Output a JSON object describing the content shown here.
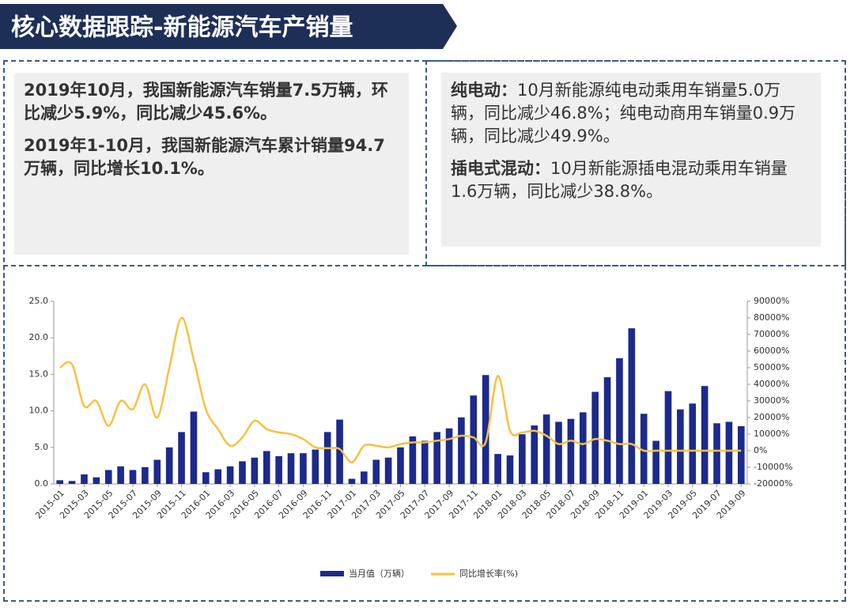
{
  "header": {
    "title": "核心数据跟踪-新能源汽车产销量"
  },
  "left_box": {
    "paragraphs": [
      "2019年10月，我国新能源汽车销量7.5万辆，环比减少5.9%，同比减少45.6%。",
      "2019年1-10月，我国新能源汽车累计销量94.7万辆，同比增长10.1%。"
    ]
  },
  "right_box": {
    "items": [
      {
        "label": "纯电动：",
        "text": "10月新能源纯电动乘用车销量5.0万辆，同比减少46.8%；纯电动商用车销量0.9万辆，同比减少49.9%。"
      },
      {
        "label": "插电式混动：",
        "text": "10月新能源插电混动乘用车销量1.6万辆，同比减少38.8%。"
      }
    ]
  },
  "chart_data": {
    "type": "combo",
    "categories": [
      "2015-01",
      null,
      "2015-03",
      null,
      "2015-05",
      null,
      "2015-07",
      null,
      "2015-09",
      null,
      "2015-11",
      null,
      "2016-01",
      null,
      "2016-03",
      null,
      "2016-05",
      null,
      "2016-07",
      null,
      "2016-09",
      null,
      "2016-11",
      null,
      "2017-01",
      null,
      "2017-03",
      null,
      "2017-05",
      null,
      "2017-07",
      null,
      "2017-09",
      null,
      "2017-11",
      null,
      "2018-01",
      null,
      "2018-03",
      null,
      "2018-05",
      null,
      "2018-07",
      null,
      "2018-09",
      null,
      "2018-11",
      null,
      "2019-01",
      null,
      "2019-03",
      null,
      "2019-05",
      null,
      "2019-07",
      null,
      "2019-09"
    ],
    "series": [
      {
        "name": "当月值（万辆）",
        "type": "bar",
        "color": "#1c2a8c",
        "values": [
          0.5,
          0.4,
          1.3,
          0.9,
          1.9,
          2.4,
          1.9,
          2.3,
          3.3,
          5.0,
          7.1,
          9.9,
          1.6,
          2.0,
          2.4,
          3.1,
          3.6,
          4.5,
          3.8,
          4.2,
          4.2,
          4.7,
          7.1,
          8.8,
          0.7,
          1.7,
          3.3,
          3.6,
          5.0,
          6.5,
          5.9,
          7.1,
          7.6,
          9.1,
          12.1,
          14.9,
          4.1,
          3.9,
          6.8,
          8.0,
          9.5,
          8.5,
          8.9,
          9.8,
          12.6,
          14.6,
          17.2,
          21.3,
          9.6,
          5.9,
          12.7,
          10.2,
          11.0,
          13.4,
          8.3,
          8.5,
          7.9
        ]
      },
      {
        "name": "同比增长率(%)",
        "type": "line",
        "axis": "y2",
        "color": "#f5c242",
        "values": [
          50000,
          52000,
          27000,
          30000,
          15000,
          30000,
          25000,
          40000,
          20000,
          50000,
          80000,
          55000,
          25000,
          13000,
          3000,
          8000,
          18000,
          13000,
          11000,
          10000,
          7000,
          2000,
          1500,
          1000,
          -7000,
          3000,
          3000,
          2000,
          4000,
          5000,
          5000,
          6000,
          7000,
          9000,
          8000,
          5000,
          45000,
          12000,
          11000,
          12000,
          9000,
          4000,
          6000,
          4000,
          7000,
          6000,
          4000,
          4000,
          0,
          0,
          0,
          0,
          0,
          0,
          0,
          0,
          0
        ]
      }
    ],
    "ylim": [
      0,
      25
    ],
    "yticks": [
      {
        "value": 0,
        "label": "0.0"
      },
      {
        "value": 5,
        "label": "5.0"
      },
      {
        "value": 10,
        "label": "10.0"
      },
      {
        "value": 15,
        "label": "15.0"
      },
      {
        "value": 20,
        "label": "20.0"
      },
      {
        "value": 25,
        "label": "25.0"
      }
    ],
    "y2lim": [
      -20000,
      90000
    ],
    "y2ticks": [
      {
        "value": -20000,
        "label": "-20000%"
      },
      {
        "value": -10000,
        "label": "-10000%"
      },
      {
        "value": 0,
        "label": "0%"
      },
      {
        "value": 10000,
        "label": "10000%"
      },
      {
        "value": 20000,
        "label": "20000%"
      },
      {
        "value": 30000,
        "label": "30000%"
      },
      {
        "value": 40000,
        "label": "40000%"
      },
      {
        "value": 50000,
        "label": "50000%"
      },
      {
        "value": 60000,
        "label": "60000%"
      },
      {
        "value": 70000,
        "label": "70000%"
      },
      {
        "value": 80000,
        "label": "80000%"
      },
      {
        "value": 90000,
        "label": "90000%"
      }
    ],
    "grid": false
  }
}
